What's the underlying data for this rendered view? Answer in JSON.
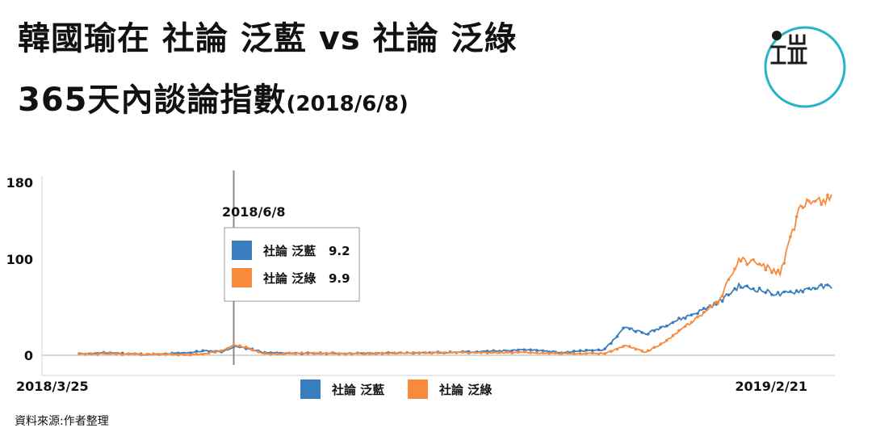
{
  "title": {
    "line1": "韓國瑜在 社論 泛藍 vs 社論 泛綠",
    "line2": "365天內談論指數",
    "line2_date": "(2018/6/8)"
  },
  "source": "資料來源:作者整理",
  "colors": {
    "blue": "#3a7dbf",
    "orange": "#f88a3c",
    "logo_ring": "#27b3c8",
    "marker": "#8a8a8a"
  },
  "logo_icon": "brand-logo-icon",
  "chart_data": {
    "type": "line",
    "x_start_label": "2018/3/25",
    "x_end_label": "2019/2/21",
    "ylim": [
      0,
      180
    ],
    "yticks": [
      0,
      100,
      180
    ],
    "grid": false,
    "marker": {
      "date": "2018/6/8",
      "index": 75
    },
    "tooltip": {
      "title": "2018/6/8",
      "entries": [
        {
          "name": "社論 泛藍",
          "value": 9.2
        },
        {
          "name": "社論 泛綠",
          "value": 9.9
        }
      ]
    },
    "legend_position": "bottom-center",
    "series": [
      {
        "name": "社論 泛藍",
        "color": "#3a7dbf",
        "keypoints": [
          [
            0,
            1.5
          ],
          [
            15,
            2.5
          ],
          [
            20,
            2
          ],
          [
            30,
            1
          ],
          [
            40,
            1
          ],
          [
            55,
            3
          ],
          [
            60,
            4.5
          ],
          [
            70,
            4
          ],
          [
            75,
            9.2
          ],
          [
            80,
            8
          ],
          [
            90,
            2.5
          ],
          [
            110,
            2
          ],
          [
            140,
            2
          ],
          [
            180,
            3
          ],
          [
            200,
            4
          ],
          [
            215,
            6
          ],
          [
            235,
            3
          ],
          [
            255,
            6
          ],
          [
            265,
            30
          ],
          [
            275,
            22
          ],
          [
            285,
            32
          ],
          [
            300,
            45
          ],
          [
            310,
            55
          ],
          [
            320,
            72
          ],
          [
            330,
            68
          ],
          [
            340,
            63
          ],
          [
            355,
            70
          ],
          [
            365,
            72
          ]
        ]
      },
      {
        "name": "社論 泛綠",
        "color": "#f88a3c",
        "keypoints": [
          [
            0,
            1
          ],
          [
            15,
            1.5
          ],
          [
            25,
            1
          ],
          [
            40,
            1
          ],
          [
            55,
            0.5
          ],
          [
            60,
            1.5
          ],
          [
            70,
            5
          ],
          [
            75,
            9.9
          ],
          [
            80,
            9
          ],
          [
            90,
            1.5
          ],
          [
            110,
            2
          ],
          [
            140,
            1.5
          ],
          [
            180,
            3
          ],
          [
            200,
            2.5
          ],
          [
            215,
            3
          ],
          [
            235,
            1.5
          ],
          [
            255,
            2
          ],
          [
            265,
            10
          ],
          [
            275,
            3
          ],
          [
            285,
            15
          ],
          [
            300,
            40
          ],
          [
            310,
            55
          ],
          [
            320,
            100
          ],
          [
            330,
            95
          ],
          [
            340,
            85
          ],
          [
            350,
            155
          ],
          [
            356,
            160
          ],
          [
            365,
            165
          ]
        ]
      }
    ]
  }
}
